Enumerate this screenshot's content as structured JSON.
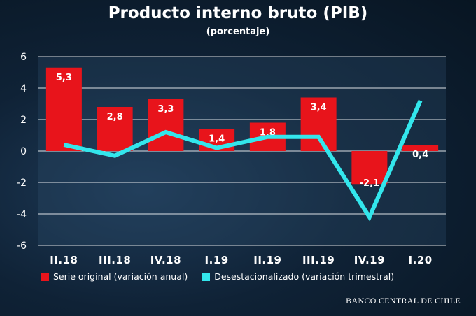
{
  "title": "Producto interno bruto (PIB)",
  "subtitle": "(porcentaje)",
  "source": "BANCO CENTRAL DE CHILE",
  "colors": {
    "bar": "#e8141b",
    "line": "#33e6ec"
  },
  "chart_data": {
    "type": "bar",
    "categories": [
      "II.18",
      "III.18",
      "IV.18",
      "I.19",
      "II.19",
      "III.19",
      "IV.19",
      "I.20"
    ],
    "series": [
      {
        "name": "Serie original (variación anual)",
        "type": "bar",
        "values": [
          5.3,
          2.8,
          3.3,
          1.4,
          1.8,
          3.4,
          -2.1,
          0.4
        ],
        "labels": [
          "5,3",
          "2,8",
          "3,3",
          "1,4",
          "1,8",
          "3,4",
          "-2,1",
          "0,4"
        ]
      },
      {
        "name": "Desestacionalizado (variación trimestral)",
        "type": "line",
        "values": [
          0.4,
          -0.3,
          1.2,
          0.2,
          0.9,
          0.9,
          -4.2,
          3.2
        ]
      }
    ],
    "ylim": [
      -6,
      6
    ],
    "yticks": [
      "6",
      "4",
      "2",
      "0",
      "-2",
      "-4",
      "-6"
    ],
    "grid": true,
    "legend_position": "bottom"
  }
}
